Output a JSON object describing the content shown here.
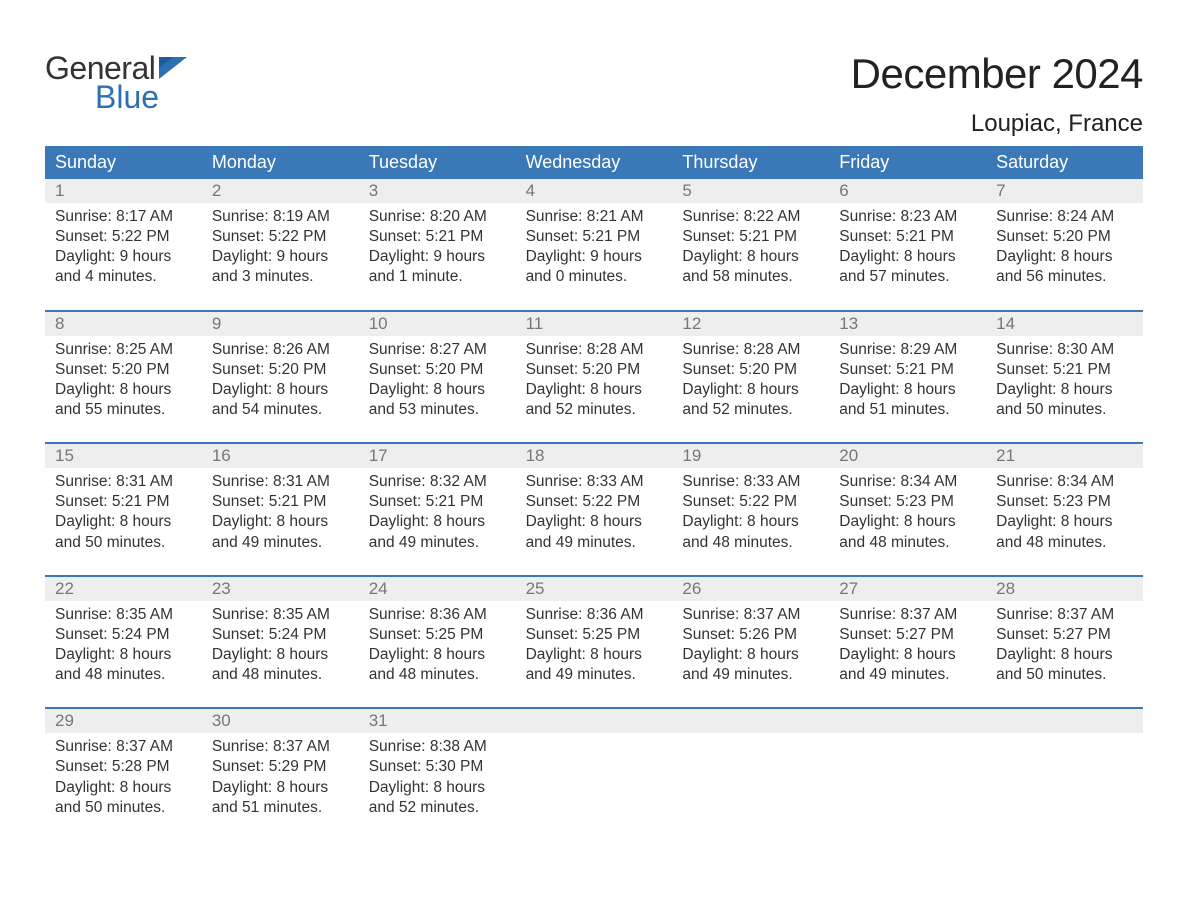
{
  "logo": {
    "text1": "General",
    "text2": "Blue"
  },
  "title": "December 2024",
  "subtitle": "Loupiac, France",
  "colors": {
    "header_bg": "#3a78b8",
    "header_text": "#ffffff",
    "daynum_bg": "#eeeeee",
    "daynum_text": "#777777",
    "body_text": "#333333",
    "logo_blue": "#2c6fb3",
    "week_border": "#3a78b8",
    "page_bg": "#ffffff"
  },
  "fontsizes": {
    "title": 42,
    "subtitle": 24,
    "dayheader": 18,
    "daynum": 17,
    "cell": 15.5,
    "logo": 32
  },
  "day_names": [
    "Sunday",
    "Monday",
    "Tuesday",
    "Wednesday",
    "Thursday",
    "Friday",
    "Saturday"
  ],
  "weeks": [
    [
      {
        "n": "1",
        "sr": "Sunrise: 8:17 AM",
        "ss": "Sunset: 5:22 PM",
        "d1": "Daylight: 9 hours",
        "d2": "and 4 minutes."
      },
      {
        "n": "2",
        "sr": "Sunrise: 8:19 AM",
        "ss": "Sunset: 5:22 PM",
        "d1": "Daylight: 9 hours",
        "d2": "and 3 minutes."
      },
      {
        "n": "3",
        "sr": "Sunrise: 8:20 AM",
        "ss": "Sunset: 5:21 PM",
        "d1": "Daylight: 9 hours",
        "d2": "and 1 minute."
      },
      {
        "n": "4",
        "sr": "Sunrise: 8:21 AM",
        "ss": "Sunset: 5:21 PM",
        "d1": "Daylight: 9 hours",
        "d2": "and 0 minutes."
      },
      {
        "n": "5",
        "sr": "Sunrise: 8:22 AM",
        "ss": "Sunset: 5:21 PM",
        "d1": "Daylight: 8 hours",
        "d2": "and 58 minutes."
      },
      {
        "n": "6",
        "sr": "Sunrise: 8:23 AM",
        "ss": "Sunset: 5:21 PM",
        "d1": "Daylight: 8 hours",
        "d2": "and 57 minutes."
      },
      {
        "n": "7",
        "sr": "Sunrise: 8:24 AM",
        "ss": "Sunset: 5:20 PM",
        "d1": "Daylight: 8 hours",
        "d2": "and 56 minutes."
      }
    ],
    [
      {
        "n": "8",
        "sr": "Sunrise: 8:25 AM",
        "ss": "Sunset: 5:20 PM",
        "d1": "Daylight: 8 hours",
        "d2": "and 55 minutes."
      },
      {
        "n": "9",
        "sr": "Sunrise: 8:26 AM",
        "ss": "Sunset: 5:20 PM",
        "d1": "Daylight: 8 hours",
        "d2": "and 54 minutes."
      },
      {
        "n": "10",
        "sr": "Sunrise: 8:27 AM",
        "ss": "Sunset: 5:20 PM",
        "d1": "Daylight: 8 hours",
        "d2": "and 53 minutes."
      },
      {
        "n": "11",
        "sr": "Sunrise: 8:28 AM",
        "ss": "Sunset: 5:20 PM",
        "d1": "Daylight: 8 hours",
        "d2": "and 52 minutes."
      },
      {
        "n": "12",
        "sr": "Sunrise: 8:28 AM",
        "ss": "Sunset: 5:20 PM",
        "d1": "Daylight: 8 hours",
        "d2": "and 52 minutes."
      },
      {
        "n": "13",
        "sr": "Sunrise: 8:29 AM",
        "ss": "Sunset: 5:21 PM",
        "d1": "Daylight: 8 hours",
        "d2": "and 51 minutes."
      },
      {
        "n": "14",
        "sr": "Sunrise: 8:30 AM",
        "ss": "Sunset: 5:21 PM",
        "d1": "Daylight: 8 hours",
        "d2": "and 50 minutes."
      }
    ],
    [
      {
        "n": "15",
        "sr": "Sunrise: 8:31 AM",
        "ss": "Sunset: 5:21 PM",
        "d1": "Daylight: 8 hours",
        "d2": "and 50 minutes."
      },
      {
        "n": "16",
        "sr": "Sunrise: 8:31 AM",
        "ss": "Sunset: 5:21 PM",
        "d1": "Daylight: 8 hours",
        "d2": "and 49 minutes."
      },
      {
        "n": "17",
        "sr": "Sunrise: 8:32 AM",
        "ss": "Sunset: 5:21 PM",
        "d1": "Daylight: 8 hours",
        "d2": "and 49 minutes."
      },
      {
        "n": "18",
        "sr": "Sunrise: 8:33 AM",
        "ss": "Sunset: 5:22 PM",
        "d1": "Daylight: 8 hours",
        "d2": "and 49 minutes."
      },
      {
        "n": "19",
        "sr": "Sunrise: 8:33 AM",
        "ss": "Sunset: 5:22 PM",
        "d1": "Daylight: 8 hours",
        "d2": "and 48 minutes."
      },
      {
        "n": "20",
        "sr": "Sunrise: 8:34 AM",
        "ss": "Sunset: 5:23 PM",
        "d1": "Daylight: 8 hours",
        "d2": "and 48 minutes."
      },
      {
        "n": "21",
        "sr": "Sunrise: 8:34 AM",
        "ss": "Sunset: 5:23 PM",
        "d1": "Daylight: 8 hours",
        "d2": "and 48 minutes."
      }
    ],
    [
      {
        "n": "22",
        "sr": "Sunrise: 8:35 AM",
        "ss": "Sunset: 5:24 PM",
        "d1": "Daylight: 8 hours",
        "d2": "and 48 minutes."
      },
      {
        "n": "23",
        "sr": "Sunrise: 8:35 AM",
        "ss": "Sunset: 5:24 PM",
        "d1": "Daylight: 8 hours",
        "d2": "and 48 minutes."
      },
      {
        "n": "24",
        "sr": "Sunrise: 8:36 AM",
        "ss": "Sunset: 5:25 PM",
        "d1": "Daylight: 8 hours",
        "d2": "and 48 minutes."
      },
      {
        "n": "25",
        "sr": "Sunrise: 8:36 AM",
        "ss": "Sunset: 5:25 PM",
        "d1": "Daylight: 8 hours",
        "d2": "and 49 minutes."
      },
      {
        "n": "26",
        "sr": "Sunrise: 8:37 AM",
        "ss": "Sunset: 5:26 PM",
        "d1": "Daylight: 8 hours",
        "d2": "and 49 minutes."
      },
      {
        "n": "27",
        "sr": "Sunrise: 8:37 AM",
        "ss": "Sunset: 5:27 PM",
        "d1": "Daylight: 8 hours",
        "d2": "and 49 minutes."
      },
      {
        "n": "28",
        "sr": "Sunrise: 8:37 AM",
        "ss": "Sunset: 5:27 PM",
        "d1": "Daylight: 8 hours",
        "d2": "and 50 minutes."
      }
    ],
    [
      {
        "n": "29",
        "sr": "Sunrise: 8:37 AM",
        "ss": "Sunset: 5:28 PM",
        "d1": "Daylight: 8 hours",
        "d2": "and 50 minutes."
      },
      {
        "n": "30",
        "sr": "Sunrise: 8:37 AM",
        "ss": "Sunset: 5:29 PM",
        "d1": "Daylight: 8 hours",
        "d2": "and 51 minutes."
      },
      {
        "n": "31",
        "sr": "Sunrise: 8:38 AM",
        "ss": "Sunset: 5:30 PM",
        "d1": "Daylight: 8 hours",
        "d2": "and 52 minutes."
      },
      null,
      null,
      null,
      null
    ]
  ]
}
